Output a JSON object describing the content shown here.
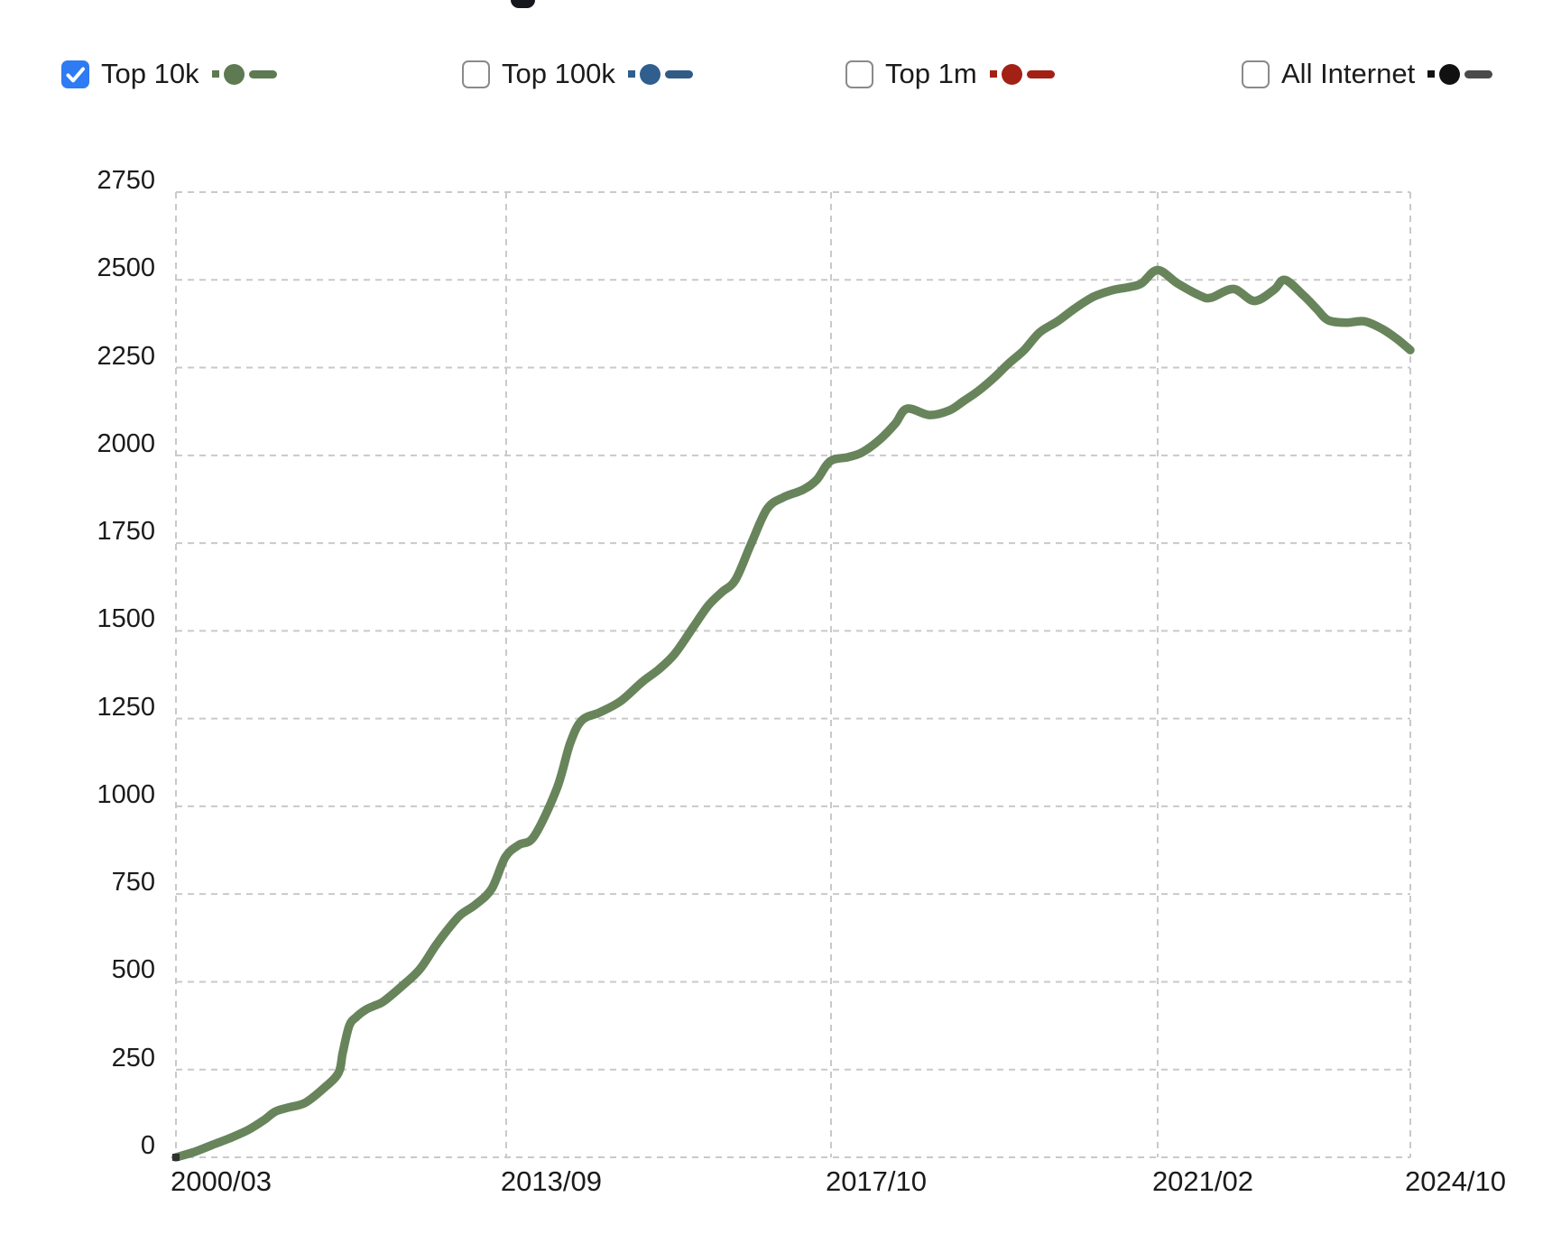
{
  "legend": {
    "checkbox_checked_color": "#2e7bf3",
    "checkbox_border_color": "#8a8a8a",
    "items": [
      {
        "id": "top-10k",
        "label": "Top 10k",
        "checked": true,
        "marker_color": "#5d7a52",
        "bar_color": "#5d7a52"
      },
      {
        "id": "top-100k",
        "label": "Top 100k",
        "checked": false,
        "marker_color": "#2f5e8f",
        "bar_color": "#315a85"
      },
      {
        "id": "top-1m",
        "label": "Top 1m",
        "checked": false,
        "marker_color": "#a32014",
        "bar_color": "#a32014"
      },
      {
        "id": "all-internet",
        "label": "All Internet",
        "checked": false,
        "marker_color": "#111111",
        "bar_color": "#4a4a4a"
      }
    ]
  },
  "chart_data": {
    "type": "line",
    "title": "",
    "xlabel": "",
    "ylabel": "",
    "ylim": [
      0,
      2750
    ],
    "grid": {
      "style": "dashed",
      "color": "#c9c9c9"
    },
    "legend_position": "top",
    "y_ticks": [
      0,
      250,
      500,
      750,
      1000,
      1250,
      1500,
      1750,
      2000,
      2250,
      2500,
      2750
    ],
    "x_ticks": [
      {
        "label": "2000/03",
        "pos": 0.0
      },
      {
        "label": "2013/09",
        "pos": 0.2675
      },
      {
        "label": "2017/10",
        "pos": 0.5307
      },
      {
        "label": "2021/02",
        "pos": 0.7953
      },
      {
        "label": "2024/10",
        "pos": 1.0
      }
    ],
    "series": [
      {
        "name": "Top 10k",
        "color": "#68845b",
        "visible": true,
        "start_marker_color": "#2f3330",
        "points": [
          [
            0.0,
            0
          ],
          [
            0.0146,
            15
          ],
          [
            0.0292,
            35
          ],
          [
            0.0439,
            55
          ],
          [
            0.0585,
            78
          ],
          [
            0.0709,
            105
          ],
          [
            0.0804,
            130
          ],
          [
            0.0914,
            142
          ],
          [
            0.1045,
            155
          ],
          [
            0.1192,
            195
          ],
          [
            0.1316,
            240
          ],
          [
            0.1352,
            300
          ],
          [
            0.1404,
            375
          ],
          [
            0.1462,
            400
          ],
          [
            0.1535,
            420
          ],
          [
            0.1608,
            432
          ],
          [
            0.1681,
            444
          ],
          [
            0.1828,
            487
          ],
          [
            0.1974,
            535
          ],
          [
            0.2098,
            600
          ],
          [
            0.2193,
            645
          ],
          [
            0.2303,
            690
          ],
          [
            0.2427,
            720
          ],
          [
            0.2558,
            765
          ],
          [
            0.2668,
            855
          ],
          [
            0.2778,
            890
          ],
          [
            0.2902,
            915
          ],
          [
            0.3085,
            1050
          ],
          [
            0.3194,
            1180
          ],
          [
            0.3289,
            1245
          ],
          [
            0.3436,
            1268
          ],
          [
            0.3604,
            1300
          ],
          [
            0.3779,
            1355
          ],
          [
            0.3911,
            1390
          ],
          [
            0.4042,
            1435
          ],
          [
            0.4189,
            1510
          ],
          [
            0.4313,
            1572
          ],
          [
            0.4422,
            1610
          ],
          [
            0.4532,
            1645
          ],
          [
            0.4656,
            1745
          ],
          [
            0.4788,
            1847
          ],
          [
            0.4919,
            1880
          ],
          [
            0.508,
            1902
          ],
          [
            0.519,
            1930
          ],
          [
            0.53,
            1983
          ],
          [
            0.5446,
            1995
          ],
          [
            0.5556,
            2008
          ],
          [
            0.5702,
            2045
          ],
          [
            0.5827,
            2090
          ],
          [
            0.5922,
            2133
          ],
          [
            0.6104,
            2115
          ],
          [
            0.6265,
            2128
          ],
          [
            0.6382,
            2155
          ],
          [
            0.6506,
            2185
          ],
          [
            0.663,
            2222
          ],
          [
            0.6747,
            2262
          ],
          [
            0.6871,
            2300
          ],
          [
            0.6996,
            2350
          ],
          [
            0.7142,
            2382
          ],
          [
            0.7288,
            2420
          ],
          [
            0.7434,
            2452
          ],
          [
            0.758,
            2470
          ],
          [
            0.7727,
            2480
          ],
          [
            0.7822,
            2490
          ],
          [
            0.7953,
            2528
          ],
          [
            0.8114,
            2490
          ],
          [
            0.8297,
            2455
          ],
          [
            0.8385,
            2449
          ],
          [
            0.8567,
            2474
          ],
          [
            0.8736,
            2440
          ],
          [
            0.8896,
            2472
          ],
          [
            0.8984,
            2500
          ],
          [
            0.9137,
            2455
          ],
          [
            0.9247,
            2415
          ],
          [
            0.9335,
            2385
          ],
          [
            0.9481,
            2378
          ],
          [
            0.9627,
            2382
          ],
          [
            0.9773,
            2360
          ],
          [
            0.989,
            2332
          ],
          [
            1.0,
            2300
          ]
        ]
      },
      {
        "name": "Top 100k",
        "color": "#2f5e8f",
        "visible": false,
        "points": []
      },
      {
        "name": "Top 1m",
        "color": "#a32014",
        "visible": false,
        "points": []
      },
      {
        "name": "All Internet",
        "color": "#111111",
        "visible": false,
        "points": []
      }
    ]
  }
}
